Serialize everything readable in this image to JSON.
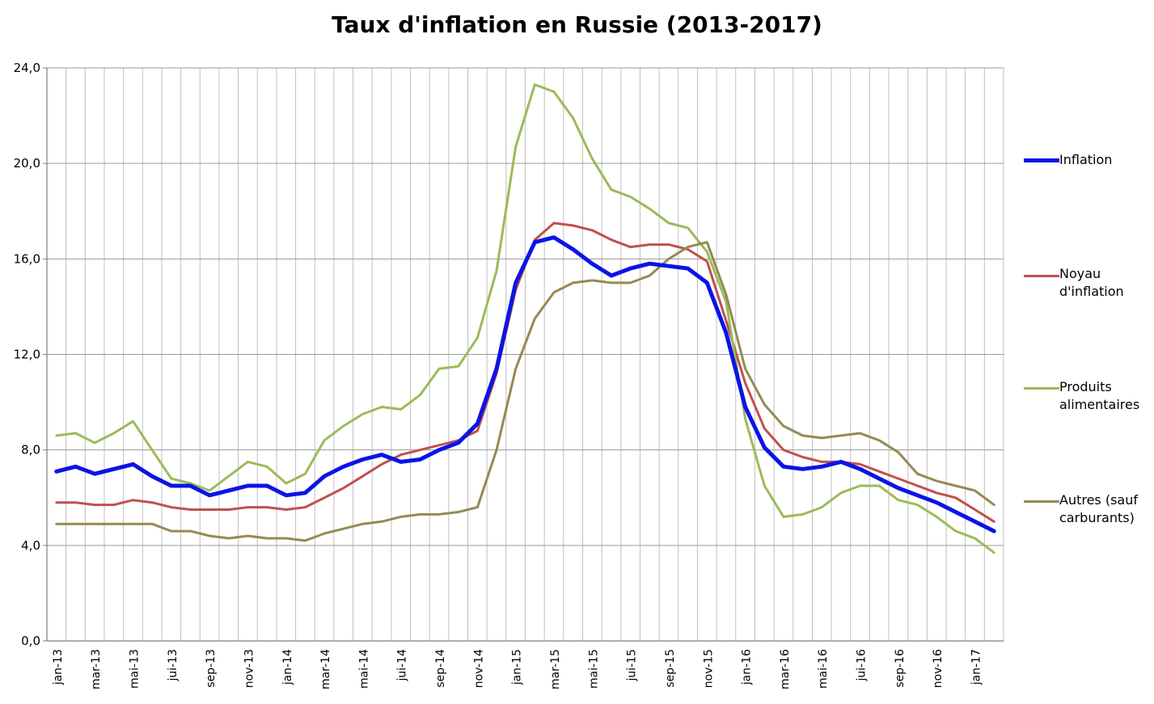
{
  "chart_data": {
    "type": "line",
    "title": "Taux d'inflation en Russie (2013-2017)",
    "xlabel": "",
    "ylabel": "",
    "ylim": [
      0,
      24
    ],
    "yticks": [
      "0,0",
      "4,0",
      "8,0",
      "12,0",
      "16,0",
      "20,0",
      "24,0"
    ],
    "grid": true,
    "legend_position": "right",
    "x_tick_labels": [
      "jan-13",
      "mar-13",
      "mai-13",
      "jui-13",
      "sep-13",
      "nov-13",
      "jan-14",
      "mar-14",
      "mai-14",
      "jui-14",
      "sep-14",
      "nov-14",
      "jan-15",
      "mar-15",
      "mai-15",
      "jui-15",
      "sep-15",
      "nov-15",
      "jan-16",
      "mar-16",
      "mai-16",
      "jui-16",
      "sep-16",
      "nov-16",
      "jan-17"
    ],
    "n_months": 50,
    "series": [
      {
        "name": "Inflation",
        "color": "#0a14e6",
        "width": 5,
        "values": [
          7.1,
          7.3,
          7.0,
          7.2,
          7.4,
          6.9,
          6.5,
          6.5,
          6.1,
          6.3,
          6.5,
          6.5,
          6.1,
          6.2,
          6.9,
          7.3,
          7.6,
          7.8,
          7.5,
          7.6,
          8.0,
          8.3,
          9.1,
          11.4,
          15.0,
          16.7,
          16.9,
          16.4,
          15.8,
          15.3,
          15.6,
          15.8,
          15.7,
          15.6,
          15.0,
          12.9,
          9.8,
          8.1,
          7.3,
          7.2,
          7.3,
          7.5,
          7.2,
          6.8,
          6.4,
          6.1,
          5.8,
          5.4,
          5.0,
          4.6
        ]
      },
      {
        "name": "Noyau d'inflation",
        "color": "#c0504d",
        "width": 3,
        "values": [
          5.8,
          5.8,
          5.7,
          5.7,
          5.9,
          5.8,
          5.6,
          5.5,
          5.5,
          5.5,
          5.6,
          5.6,
          5.5,
          5.6,
          6.0,
          6.4,
          6.9,
          7.4,
          7.8,
          8.0,
          8.2,
          8.4,
          8.8,
          11.2,
          14.7,
          16.8,
          17.5,
          17.4,
          17.2,
          16.8,
          16.5,
          16.6,
          16.6,
          16.4,
          15.9,
          13.4,
          10.8,
          8.9,
          8.0,
          7.7,
          7.5,
          7.5,
          7.4,
          7.1,
          6.8,
          6.5,
          6.2,
          6.0,
          5.5,
          5.0
        ]
      },
      {
        "name": "Produits alimentaires",
        "color": "#9bbb59",
        "width": 3,
        "values": [
          8.6,
          8.7,
          8.3,
          8.7,
          9.2,
          8.0,
          6.8,
          6.6,
          6.3,
          6.9,
          7.5,
          7.3,
          6.6,
          7.0,
          8.4,
          9.0,
          9.5,
          9.8,
          9.7,
          10.3,
          11.4,
          11.5,
          12.7,
          15.5,
          20.7,
          23.3,
          23.0,
          21.9,
          20.2,
          18.9,
          18.6,
          18.1,
          17.5,
          17.3,
          16.3,
          14.2,
          9.3,
          6.5,
          5.2,
          5.3,
          5.6,
          6.2,
          6.5,
          6.5,
          5.9,
          5.7,
          5.2,
          4.6,
          4.3,
          3.7
        ]
      },
      {
        "name": "Autres (sauf carburants)",
        "color": "#948a54",
        "width": 3,
        "values": [
          4.9,
          4.9,
          4.9,
          4.9,
          4.9,
          4.9,
          4.6,
          4.6,
          4.4,
          4.3,
          4.4,
          4.3,
          4.3,
          4.2,
          4.5,
          4.7,
          4.9,
          5.0,
          5.2,
          5.3,
          5.3,
          5.4,
          5.6,
          8.0,
          11.4,
          13.5,
          14.6,
          15.0,
          15.1,
          15.0,
          15.0,
          15.3,
          16.0,
          16.5,
          16.7,
          14.5,
          11.4,
          9.9,
          9.0,
          8.6,
          8.5,
          8.6,
          8.7,
          8.4,
          7.9,
          7.0,
          6.7,
          6.5,
          6.3,
          5.7
        ]
      }
    ]
  },
  "legend": [
    {
      "label": "Inflation"
    },
    {
      "label": "Noyau\nd'inflation"
    },
    {
      "label": "Produits\nalimentaires"
    },
    {
      "label": "Autres (sauf\ncarburants)"
    }
  ]
}
